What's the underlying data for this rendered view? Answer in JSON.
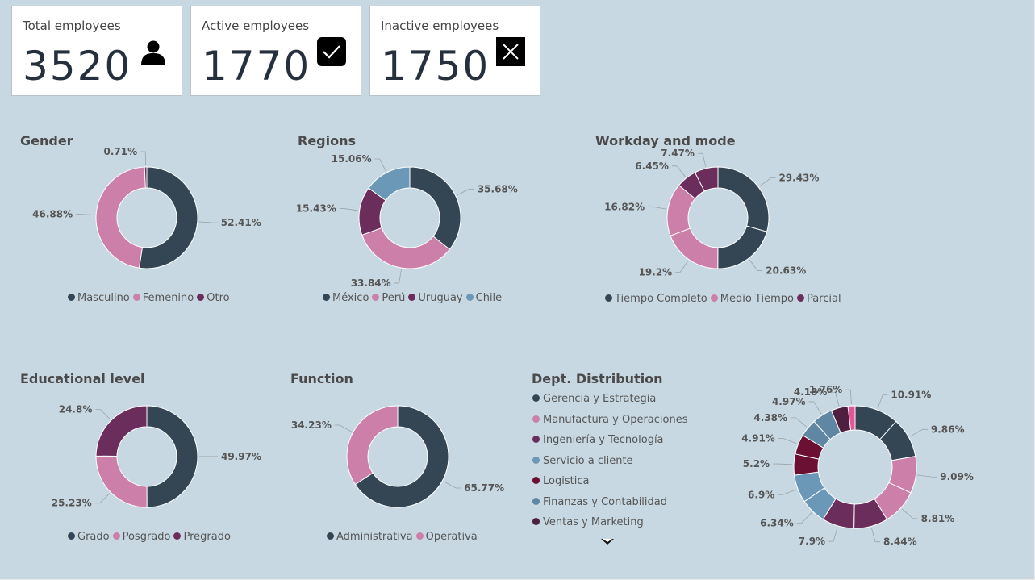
{
  "kpis": {
    "total": {
      "label": "Total employees",
      "value": "3520",
      "icon": "person-icon"
    },
    "active": {
      "label": "Active employees",
      "value": "1770",
      "icon": "check-icon"
    },
    "inactive": {
      "label": "Inactive employees",
      "value": "1750",
      "icon": "close-icon"
    }
  },
  "colors": {
    "slate": "#344654",
    "pink": "#cc7fa8",
    "purple": "#6b2d5c",
    "steel": "#6b98b6",
    "crimson": "#6b0f33",
    "grayblue": "#5f87a3",
    "plum": "#4f1f40",
    "hotpink": "#e6549a"
  },
  "chart_data": [
    {
      "id": "gender",
      "type": "pie",
      "title": "Gender",
      "categories": [
        "Masculino",
        "Femenino",
        "Otro"
      ],
      "values": [
        52.41,
        46.88,
        0.71
      ],
      "labels": [
        "52.41%",
        "46.88%",
        "0.71%"
      ],
      "colors": [
        "#344654",
        "#cc7fa8",
        "#6b2d5c"
      ],
      "legend_position": "bottom"
    },
    {
      "id": "regions",
      "type": "pie",
      "title": "Regions",
      "categories": [
        "México",
        "Perú",
        "Uruguay",
        "Chile"
      ],
      "values": [
        35.68,
        33.84,
        15.43,
        15.06
      ],
      "labels": [
        "35.68%",
        "33.84%",
        "15.43%",
        "15.06%"
      ],
      "colors": [
        "#344654",
        "#cc7fa8",
        "#6b2d5c",
        "#6b98b6"
      ],
      "legend_position": "bottom"
    },
    {
      "id": "workday",
      "type": "pie",
      "title": "Workday and mode",
      "categories": [
        "Tiempo Completo",
        "Tiempo Completo",
        "Medio Tiempo",
        "Medio Tiempo",
        "Parcial",
        "Parcial"
      ],
      "legend_categories": [
        "Tiempo Completo",
        "Medio Tiempo",
        "Parcial"
      ],
      "values": [
        29.43,
        20.63,
        19.2,
        16.82,
        6.45,
        7.47
      ],
      "labels": [
        "29.43%",
        "20.63%",
        "19.2%",
        "16.82%",
        "6.45%",
        "7.47%"
      ],
      "colors": [
        "#344654",
        "#344654",
        "#cc7fa8",
        "#cc7fa8",
        "#6b2d5c",
        "#6b2d5c"
      ],
      "legend_colors": [
        "#344654",
        "#cc7fa8",
        "#6b2d5c"
      ],
      "legend_position": "bottom"
    },
    {
      "id": "education",
      "type": "pie",
      "title": "Educational level",
      "categories": [
        "Grado",
        "Posgrado",
        "Pregrado"
      ],
      "values": [
        49.97,
        25.23,
        24.8
      ],
      "labels": [
        "49.97%",
        "25.23%",
        "24.8%"
      ],
      "colors": [
        "#344654",
        "#cc7fa8",
        "#6b2d5c"
      ],
      "legend_position": "bottom"
    },
    {
      "id": "function",
      "type": "pie",
      "title": "Function",
      "categories": [
        "Administrativa",
        "Operativa"
      ],
      "values": [
        65.77,
        34.23
      ],
      "labels": [
        "65.77%",
        "34.23%"
      ],
      "colors": [
        "#344654",
        "#cc7fa8"
      ],
      "legend_position": "bottom"
    },
    {
      "id": "dept",
      "type": "pie",
      "title": "Dept. Distribution",
      "legend_categories": [
        "Gerencia y Estrategia",
        "Manufactura y Operaciones",
        "Ingeniería y Tecnología",
        "Servicio a cliente",
        "Logistica",
        "Finanzas y Contabilidad",
        "Ventas y Marketing"
      ],
      "legend_colors": [
        "#344654",
        "#cc7fa8",
        "#6b2d5c",
        "#6b98b6",
        "#6b0f33",
        "#5f87a3",
        "#4f1f40"
      ],
      "values": [
        10.91,
        9.86,
        9.09,
        8.81,
        8.44,
        7.9,
        6.34,
        6.9,
        5.2,
        4.91,
        4.38,
        4.97,
        4.18,
        1.76
      ],
      "labels": [
        "10.91%",
        "9.86%",
        "9.09%",
        "8.81%",
        "8.44%",
        "7.9%",
        "6.34%",
        "6.9%",
        "5.2%",
        "4.91%",
        "4.38%",
        "4.97%",
        "4.18%",
        "1.76%"
      ],
      "colors": [
        "#344654",
        "#344654",
        "#cc7fa8",
        "#cc7fa8",
        "#6b2d5c",
        "#6b2d5c",
        "#6b98b6",
        "#6b98b6",
        "#6b0f33",
        "#6b0f33",
        "#5f87a3",
        "#5f87a3",
        "#4f1f40",
        "#e6549a"
      ],
      "legend_position": "left"
    }
  ]
}
